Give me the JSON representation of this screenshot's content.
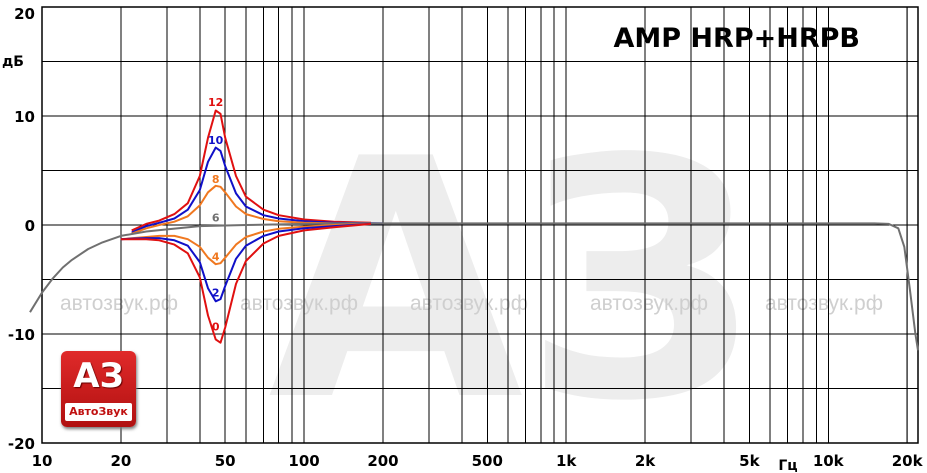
{
  "chart_data": {
    "type": "line",
    "title": "AMP HRP+HRPB",
    "xlabel": "Гц",
    "ylabel": "дБ",
    "xscale": "log",
    "xlim": [
      10,
      22000
    ],
    "ylim": [
      -20,
      20
    ],
    "grid": true,
    "x_ticks": [
      {
        "value": 10,
        "label": "10"
      },
      {
        "value": 20,
        "label": "20"
      },
      {
        "value": 50,
        "label": "50"
      },
      {
        "value": 100,
        "label": "100"
      },
      {
        "value": 200,
        "label": "200"
      },
      {
        "value": 500,
        "label": "500"
      },
      {
        "value": 1000,
        "label": "1k"
      },
      {
        "value": 2000,
        "label": "2k"
      },
      {
        "value": 5000,
        "label": "5k"
      },
      {
        "value": 10000,
        "label": "10k"
      },
      {
        "value": 20000,
        "label": "20k"
      }
    ],
    "y_ticks": [
      {
        "value": 20,
        "label": "20"
      },
      {
        "value": 10,
        "label": "10"
      },
      {
        "value": 0,
        "label": "0"
      },
      {
        "value": -10,
        "label": "-10"
      },
      {
        "value": -20,
        "label": "-20"
      }
    ],
    "series": [
      {
        "name": "12",
        "color": "#e01010",
        "label_at": [
          46,
          11.3
        ],
        "points": [
          [
            22,
            -0.5
          ],
          [
            25,
            0.1
          ],
          [
            28,
            0.4
          ],
          [
            32,
            1
          ],
          [
            36,
            2
          ],
          [
            40,
            4.5
          ],
          [
            43,
            8
          ],
          [
            46,
            10.5
          ],
          [
            48,
            10.2
          ],
          [
            50,
            8
          ],
          [
            55,
            4.5
          ],
          [
            60,
            2.6
          ],
          [
            70,
            1.4
          ],
          [
            80,
            0.9
          ],
          [
            100,
            0.5
          ],
          [
            130,
            0.3
          ],
          [
            180,
            0.2
          ]
        ]
      },
      {
        "name": "10",
        "color": "#1010c8",
        "label_at": [
          46,
          7.8
        ],
        "points": [
          [
            22,
            -0.7
          ],
          [
            25,
            -0.1
          ],
          [
            28,
            0.2
          ],
          [
            32,
            0.6
          ],
          [
            36,
            1.4
          ],
          [
            40,
            3.2
          ],
          [
            43,
            5.8
          ],
          [
            46,
            7.1
          ],
          [
            48,
            6.8
          ],
          [
            50,
            5.4
          ],
          [
            55,
            2.9
          ],
          [
            60,
            1.7
          ],
          [
            70,
            0.9
          ],
          [
            80,
            0.6
          ],
          [
            100,
            0.35
          ],
          [
            130,
            0.2
          ],
          [
            200,
            0.15
          ]
        ]
      },
      {
        "name": "8",
        "color": "#f07820",
        "label_at": [
          46,
          4.2
        ],
        "points": [
          [
            22,
            -0.8
          ],
          [
            25,
            -0.3
          ],
          [
            28,
            0
          ],
          [
            32,
            0.3
          ],
          [
            36,
            0.8
          ],
          [
            40,
            1.8
          ],
          [
            43,
            3
          ],
          [
            46,
            3.6
          ],
          [
            48,
            3.5
          ],
          [
            50,
            3
          ],
          [
            55,
            1.7
          ],
          [
            60,
            1
          ],
          [
            70,
            0.55
          ],
          [
            80,
            0.35
          ],
          [
            100,
            0.2
          ],
          [
            130,
            0.15
          ],
          [
            180,
            0.15
          ]
        ]
      },
      {
        "name": "6",
        "color": "#707070",
        "label_at": [
          46,
          0.7
        ],
        "points": [
          [
            9,
            -8
          ],
          [
            10,
            -6.2
          ],
          [
            11,
            -4.9
          ],
          [
            12,
            -3.9
          ],
          [
            13,
            -3.2
          ],
          [
            15,
            -2.2
          ],
          [
            17,
            -1.6
          ],
          [
            20,
            -1
          ],
          [
            25,
            -0.6
          ],
          [
            30,
            -0.4
          ],
          [
            40,
            -0.1
          ],
          [
            60,
            0
          ],
          [
            100,
            0.1
          ],
          [
            150,
            0.15
          ],
          [
            300,
            0.15
          ],
          [
            1000,
            0.15
          ],
          [
            5000,
            0.15
          ],
          [
            15000,
            0.15
          ],
          [
            17000,
            0.1
          ],
          [
            18500,
            -0.3
          ],
          [
            19500,
            -2
          ],
          [
            20500,
            -6
          ],
          [
            21500,
            -10
          ],
          [
            22000,
            -11.5
          ]
        ]
      },
      {
        "name": "4",
        "color": "#f07820",
        "label_at": [
          46,
          -2.9
        ],
        "points": [
          [
            20,
            -1.3
          ],
          [
            25,
            -1.1
          ],
          [
            28,
            -1
          ],
          [
            32,
            -1
          ],
          [
            36,
            -1.3
          ],
          [
            40,
            -2
          ],
          [
            43,
            -3
          ],
          [
            46,
            -3.6
          ],
          [
            48,
            -3.5
          ],
          [
            50,
            -3
          ],
          [
            55,
            -1.8
          ],
          [
            60,
            -1.1
          ],
          [
            70,
            -0.6
          ],
          [
            80,
            -0.35
          ],
          [
            100,
            -0.15
          ],
          [
            130,
            0
          ],
          [
            180,
            0.1
          ]
        ]
      },
      {
        "name": "2",
        "color": "#1010c8",
        "label_at": [
          46,
          -6.2
        ],
        "points": [
          [
            20,
            -1.3
          ],
          [
            25,
            -1.2
          ],
          [
            28,
            -1.2
          ],
          [
            32,
            -1.4
          ],
          [
            36,
            -1.9
          ],
          [
            40,
            -3.4
          ],
          [
            43,
            -5.8
          ],
          [
            46,
            -7
          ],
          [
            48,
            -6.8
          ],
          [
            50,
            -5.6
          ],
          [
            55,
            -3.1
          ],
          [
            60,
            -1.9
          ],
          [
            70,
            -1
          ],
          [
            80,
            -0.6
          ],
          [
            100,
            -0.3
          ],
          [
            130,
            -0.1
          ],
          [
            180,
            0.1
          ]
        ]
      },
      {
        "name": "0",
        "color": "#e01010",
        "label_at": [
          46,
          -9.3
        ],
        "points": [
          [
            20,
            -1.3
          ],
          [
            25,
            -1.3
          ],
          [
            28,
            -1.4
          ],
          [
            32,
            -1.8
          ],
          [
            36,
            -2.6
          ],
          [
            40,
            -4.8
          ],
          [
            43,
            -8.3
          ],
          [
            46,
            -10.5
          ],
          [
            48,
            -10.8
          ],
          [
            50,
            -9.4
          ],
          [
            55,
            -5.4
          ],
          [
            60,
            -3.3
          ],
          [
            70,
            -1.7
          ],
          [
            80,
            -1
          ],
          [
            100,
            -0.5
          ],
          [
            130,
            -0.2
          ],
          [
            180,
            0.1
          ]
        ]
      }
    ]
  },
  "watermark": {
    "text": "автозвук.рф",
    "large_letters": "АЗ"
  },
  "logo": {
    "letters": "АЗ",
    "name": "АвтоЗвук"
  }
}
